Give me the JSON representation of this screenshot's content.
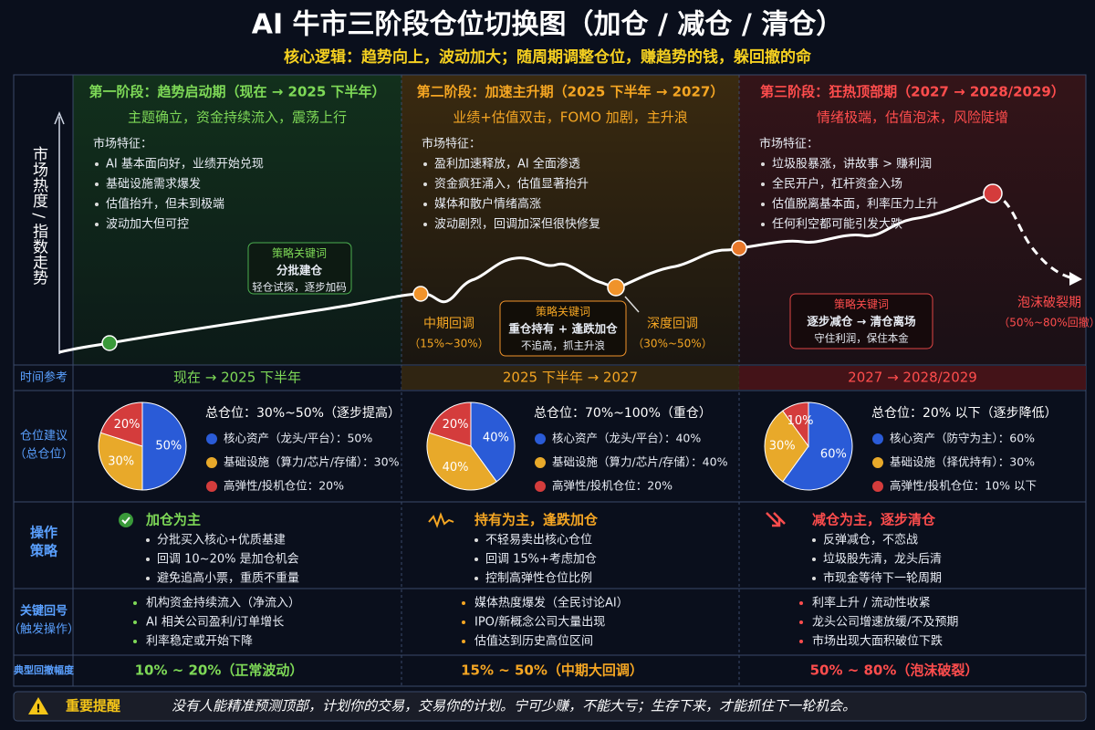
{
  "header": {
    "title": "AI 牛市三阶段仓位切换图（加仓 / 减仓 / 清仓）",
    "subtitle": "核心逻辑：趋势向上，波动加大；随周期调整仓位，赚趋势的钱，躲回撤的命"
  },
  "y_axis_label": "市场热度 / 指数走势",
  "phases": [
    {
      "title": "第一阶段：趋势启动期（现在 → 2025 下半年）",
      "tagline": "主题确立，资金持续流入，震荡上行",
      "features_title": "市场特征：",
      "features": [
        "AI 基本面向好，业绩开始兑现",
        "基础设施需求爆发",
        "估值抬升，但未到极端",
        "波动加大但可控"
      ]
    },
    {
      "title": "第二阶段：加速主升期（2025 下半年 → 2027）",
      "tagline": "业绩+估值双击，FOMO 加剧，主升浪",
      "features_title": "市场特征：",
      "features": [
        "盈利加速释放，AI 全面渗透",
        "资金疯狂涌入，估值显著抬升",
        "媒体和散户情绪高涨",
        "波动剧烈，回调加深但很快修复"
      ]
    },
    {
      "title": "第三阶段：狂热顶部期（2027 → 2028/2029）",
      "tagline": "情绪极端，估值泡沫，风险陡增",
      "features_title": "市场特征：",
      "features": [
        "垃圾股暴涨，讲故事 > 赚利润",
        "全民开户，杠杆资金入场",
        "估值脱离基本面，利率压力上升",
        "任何利空都可能引发大跌"
      ]
    }
  ],
  "keywords": [
    {
      "title": "策略关键词",
      "lines": [
        "分批建仓",
        "轻仓试探，逐步加码"
      ]
    },
    {
      "title": "策略关键词",
      "lines": [
        "重仓持有 + 逢跌加仓",
        "不追高，抓主升浪"
      ]
    },
    {
      "title": "策略关键词",
      "lines": [
        "逐步减仓 → 清仓离场",
        "守住利润，保住本金"
      ]
    }
  ],
  "points": [
    {
      "label": "中期回调",
      "sub": "（15%~30%）"
    },
    {
      "label": "深度回调",
      "sub": "（30%~50%）"
    },
    {
      "label": "泡沫破裂期",
      "sub": "（50%~80%回撤）"
    }
  ],
  "rows": {
    "time": {
      "label": "时间参考",
      "cells": [
        "现在  →  2025 下半年",
        "2025 下半年  →  2027",
        "2027  →  2028/2029"
      ]
    },
    "position": {
      "label": "仓位建议",
      "sublabel": "（总仓位）",
      "cells": [
        {
          "total": "总仓位：30%~50%（逐步提高）",
          "items": [
            "核心资产（龙头/平台）：50%",
            "基础设施（算力/芯片/存储）：30%",
            "高弹性/投机仓位：20%"
          ],
          "pie": {
            "values": [
              50,
              30,
              20
            ],
            "value_labels": [
              "50%",
              "30%",
              "20%"
            ],
            "colors": [
              "#2a5bd7",
              "#e8a92a",
              "#d43c3c"
            ]
          }
        },
        {
          "total": "总仓位：70%~100%（重仓）",
          "items": [
            "核心资产（龙头/平台）：40%",
            "基础设施（算力/芯片/存储）：40%",
            "高弹性/投机仓位：20%"
          ],
          "pie": {
            "values": [
              40,
              40,
              20
            ],
            "value_labels": [
              "40%",
              "40%",
              "20%"
            ],
            "colors": [
              "#2a5bd7",
              "#e8a92a",
              "#d43c3c"
            ]
          }
        },
        {
          "total": "总仓位：20% 以下（逐步降低）",
          "items": [
            "核心资产（防守为主）：60%",
            "基础设施（择优持有）：30%",
            "高弹性/投机仓位：10% 以下"
          ],
          "pie": {
            "values": [
              60,
              30,
              10
            ],
            "value_labels": [
              "60%",
              "30%",
              "10%"
            ],
            "colors": [
              "#2a5bd7",
              "#e8a92a",
              "#d43c3c"
            ]
          }
        }
      ]
    },
    "ops": {
      "label": [
        "操作",
        "策略"
      ],
      "cells": [
        {
          "head": "加仓为主",
          "items": [
            "分批买入核心+优质基建",
            "回调 10~20% 是加仓机会",
            "避免追高小票，重质不重量"
          ]
        },
        {
          "head": "持有为主，逢跌加仓",
          "items": [
            "不轻易卖出核心仓位",
            "回调 15%+考虑加仓",
            "控制高弹性仓位比例"
          ]
        },
        {
          "head": "减仓为主，逐步清仓",
          "items": [
            "反弹减仓，不恋战",
            "垃圾股先清，龙头后清",
            "市现金等待下一轮周期"
          ]
        }
      ]
    },
    "signals": {
      "label": "关键回号",
      "sublabel": "（触发操作）",
      "cells": [
        [
          "机构资金持续流入（净流入）",
          "AI 相关公司盈利/订单增长",
          "利率稳定或开始下降"
        ],
        [
          "媒体热度爆发（全民讨论AI）",
          "IPO/新概念公司大量出现",
          "估值达到历史高位区间"
        ],
        [
          "利率上升 / 流动性收紧",
          "龙头公司增速放缓/不及预期",
          "市场出现大面积破位下跌"
        ]
      ]
    },
    "drawdown": {
      "label": "典型回撤幅度",
      "cells": [
        "10% ~ 20%（正常波动）",
        "15% ~ 50%（中期大回调）",
        "50% ~ 80%（泡沫破裂）"
      ]
    }
  },
  "footer": {
    "label": "重要提醒",
    "text": "没有人能精准预测顶部，计划你的交易，交易你的计划。宁可少赚，不能大亏；生存下来，才能抓住下一轮机会。"
  }
}
